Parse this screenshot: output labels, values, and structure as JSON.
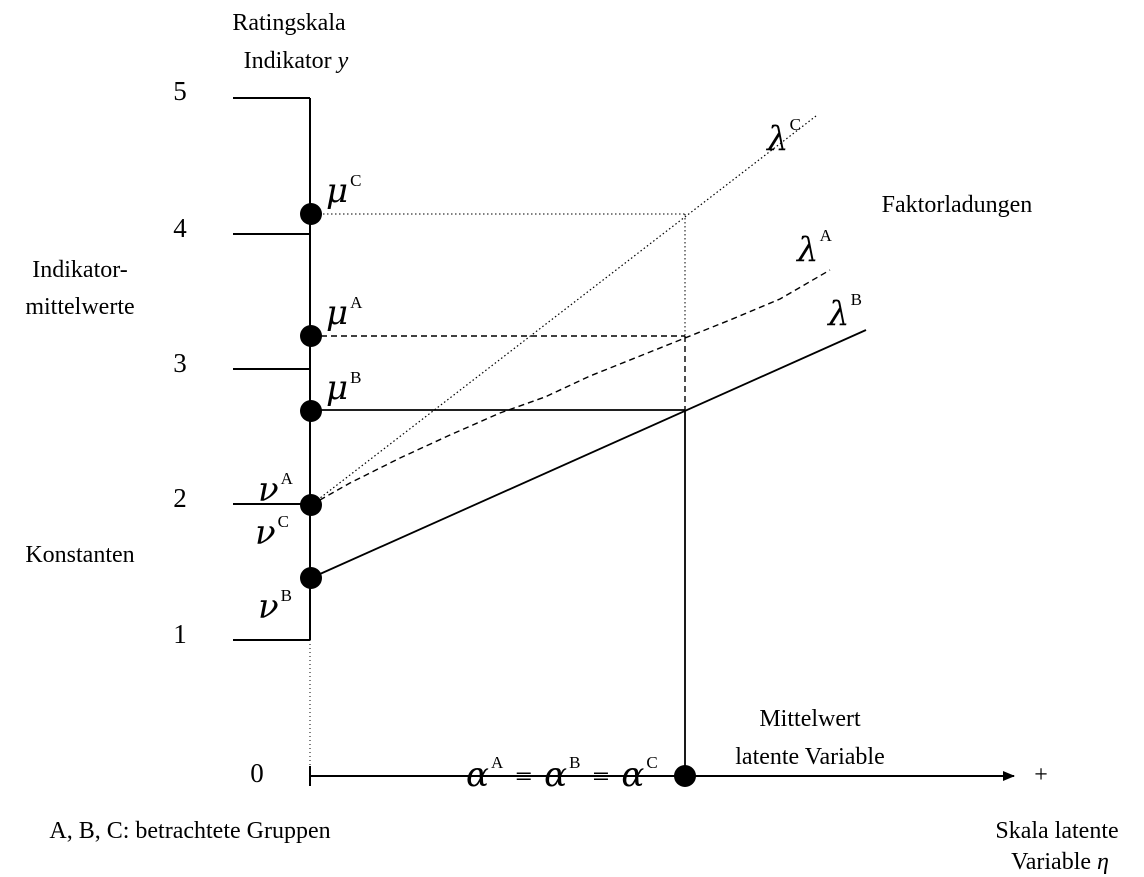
{
  "y_axis": {
    "title_line1": "Ratingskala",
    "title_line2_prefix": "Indikator ",
    "title_line2_var": "y",
    "ticks": [
      "0",
      "1",
      "2",
      "3",
      "4",
      "5"
    ]
  },
  "x_axis": {
    "plus": "+",
    "title_line1": "Skala latente",
    "title_line2_prefix": "Variable ",
    "title_line2_var": "η"
  },
  "annotations": {
    "faktorladungen": "Faktorladungen",
    "indikator_line1": "Indikator-",
    "indikator_line2": "mittelwerte",
    "konstanten": "Konstanten",
    "mittelwert_line1": "Mittelwert",
    "mittelwert_line2": "latente Variable",
    "groups_note": "A, B, C: betrachtete Gruppen"
  },
  "symbols": {
    "mu": "μ",
    "nu": "ν",
    "lambda": "λ",
    "alpha": "α",
    "equals": "=",
    "group_a": "A",
    "group_b": "B",
    "group_c": "C"
  },
  "model": {
    "groups": [
      {
        "name": "A",
        "intercept_nu": 2.0,
        "indicator_mean_mu": 3.25,
        "line_style": "dashed"
      },
      {
        "name": "B",
        "intercept_nu": 1.45,
        "indicator_mean_mu": 2.7,
        "line_style": "solid"
      },
      {
        "name": "C",
        "intercept_nu": 2.0,
        "indicator_mean_mu": 4.15,
        "line_style": "dotted"
      }
    ],
    "y_range": [
      0,
      5
    ],
    "latent_mean_alpha_equal_across_groups": true
  },
  "colors": {
    "ink": "#000000",
    "background": "#ffffff"
  }
}
